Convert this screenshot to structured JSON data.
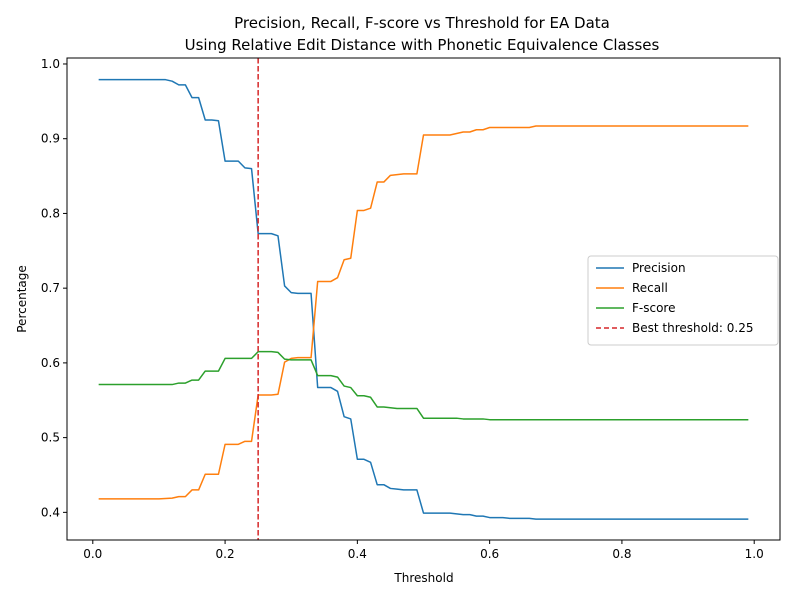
{
  "chart_data": {
    "type": "line",
    "title": "Precision, Recall, F-score vs Threshold for EA Data",
    "subtitle": "Using Relative Edit Distance with Phonetic Equivalence Classes",
    "xlabel": "Threshold",
    "ylabel": "Percentage",
    "xlim": [
      -0.039,
      1.039
    ],
    "ylim": [
      0.363,
      1.008
    ],
    "xticks": [
      0.0,
      0.2,
      0.4,
      0.6,
      0.8,
      1.0
    ],
    "xtick_labels": [
      "0.0",
      "0.2",
      "0.4",
      "0.6",
      "0.8",
      "1.0"
    ],
    "yticks": [
      0.4,
      0.5,
      0.6,
      0.7,
      0.8,
      0.9,
      1.0
    ],
    "ytick_labels": [
      "0.4",
      "0.5",
      "0.6",
      "0.7",
      "0.8",
      "0.9",
      "1.0"
    ],
    "grid": false,
    "legend_position": "center-right",
    "colors": {
      "precision": "#1f77b4",
      "recall": "#ff7f0e",
      "fscore": "#2ca02c",
      "threshold": "#d62728"
    },
    "series": [
      {
        "name": "Precision",
        "color": "#1f77b4",
        "points": [
          [
            0.01,
            0.979
          ],
          [
            0.05,
            0.979
          ],
          [
            0.1,
            0.979
          ],
          [
            0.11,
            0.979
          ],
          [
            0.12,
            0.977
          ],
          [
            0.13,
            0.972
          ],
          [
            0.14,
            0.972
          ],
          [
            0.15,
            0.955
          ],
          [
            0.16,
            0.955
          ],
          [
            0.17,
            0.925
          ],
          [
            0.18,
            0.925
          ],
          [
            0.19,
            0.924
          ],
          [
            0.2,
            0.87
          ],
          [
            0.21,
            0.87
          ],
          [
            0.22,
            0.87
          ],
          [
            0.23,
            0.861
          ],
          [
            0.24,
            0.86
          ],
          [
            0.25,
            0.773
          ],
          [
            0.26,
            0.773
          ],
          [
            0.27,
            0.773
          ],
          [
            0.28,
            0.77
          ],
          [
            0.29,
            0.703
          ],
          [
            0.3,
            0.694
          ],
          [
            0.31,
            0.693
          ],
          [
            0.32,
            0.693
          ],
          [
            0.33,
            0.693
          ],
          [
            0.34,
            0.567
          ],
          [
            0.35,
            0.567
          ],
          [
            0.36,
            0.567
          ],
          [
            0.37,
            0.562
          ],
          [
            0.38,
            0.528
          ],
          [
            0.39,
            0.525
          ],
          [
            0.4,
            0.471
          ],
          [
            0.41,
            0.471
          ],
          [
            0.42,
            0.467
          ],
          [
            0.43,
            0.437
          ],
          [
            0.44,
            0.437
          ],
          [
            0.45,
            0.432
          ],
          [
            0.46,
            0.431
          ],
          [
            0.47,
            0.43
          ],
          [
            0.48,
            0.43
          ],
          [
            0.49,
            0.43
          ],
          [
            0.5,
            0.399
          ],
          [
            0.54,
            0.399
          ],
          [
            0.55,
            0.398
          ],
          [
            0.56,
            0.397
          ],
          [
            0.57,
            0.397
          ],
          [
            0.58,
            0.395
          ],
          [
            0.59,
            0.395
          ],
          [
            0.6,
            0.393
          ],
          [
            0.62,
            0.393
          ],
          [
            0.63,
            0.392
          ],
          [
            0.66,
            0.392
          ],
          [
            0.67,
            0.391
          ],
          [
            0.99,
            0.391
          ]
        ]
      },
      {
        "name": "Recall",
        "color": "#ff7f0e",
        "points": [
          [
            0.01,
            0.418
          ],
          [
            0.05,
            0.418
          ],
          [
            0.1,
            0.418
          ],
          [
            0.12,
            0.419
          ],
          [
            0.13,
            0.421
          ],
          [
            0.14,
            0.421
          ],
          [
            0.15,
            0.43
          ],
          [
            0.16,
            0.43
          ],
          [
            0.17,
            0.451
          ],
          [
            0.18,
            0.451
          ],
          [
            0.19,
            0.451
          ],
          [
            0.2,
            0.491
          ],
          [
            0.21,
            0.491
          ],
          [
            0.22,
            0.491
          ],
          [
            0.23,
            0.495
          ],
          [
            0.24,
            0.495
          ],
          [
            0.25,
            0.557
          ],
          [
            0.26,
            0.557
          ],
          [
            0.27,
            0.557
          ],
          [
            0.28,
            0.558
          ],
          [
            0.29,
            0.601
          ],
          [
            0.3,
            0.606
          ],
          [
            0.31,
            0.607
          ],
          [
            0.32,
            0.607
          ],
          [
            0.33,
            0.607
          ],
          [
            0.34,
            0.709
          ],
          [
            0.35,
            0.709
          ],
          [
            0.36,
            0.709
          ],
          [
            0.37,
            0.714
          ],
          [
            0.38,
            0.738
          ],
          [
            0.39,
            0.74
          ],
          [
            0.4,
            0.804
          ],
          [
            0.41,
            0.804
          ],
          [
            0.42,
            0.807
          ],
          [
            0.43,
            0.842
          ],
          [
            0.44,
            0.842
          ],
          [
            0.45,
            0.851
          ],
          [
            0.46,
            0.852
          ],
          [
            0.47,
            0.853
          ],
          [
            0.48,
            0.853
          ],
          [
            0.49,
            0.853
          ],
          [
            0.5,
            0.905
          ],
          [
            0.54,
            0.905
          ],
          [
            0.55,
            0.907
          ],
          [
            0.56,
            0.909
          ],
          [
            0.57,
            0.909
          ],
          [
            0.58,
            0.912
          ],
          [
            0.59,
            0.912
          ],
          [
            0.6,
            0.915
          ],
          [
            0.62,
            0.915
          ],
          [
            0.63,
            0.915
          ],
          [
            0.66,
            0.915
          ],
          [
            0.67,
            0.917
          ],
          [
            0.99,
            0.917
          ]
        ]
      },
      {
        "name": "F-score",
        "color": "#2ca02c",
        "points": [
          [
            0.01,
            0.571
          ],
          [
            0.05,
            0.571
          ],
          [
            0.1,
            0.571
          ],
          [
            0.12,
            0.571
          ],
          [
            0.13,
            0.573
          ],
          [
            0.14,
            0.573
          ],
          [
            0.15,
            0.577
          ],
          [
            0.16,
            0.577
          ],
          [
            0.17,
            0.589
          ],
          [
            0.18,
            0.589
          ],
          [
            0.19,
            0.589
          ],
          [
            0.2,
            0.606
          ],
          [
            0.21,
            0.606
          ],
          [
            0.22,
            0.606
          ],
          [
            0.23,
            0.606
          ],
          [
            0.24,
            0.606
          ],
          [
            0.25,
            0.615
          ],
          [
            0.26,
            0.615
          ],
          [
            0.27,
            0.615
          ],
          [
            0.28,
            0.614
          ],
          [
            0.29,
            0.605
          ],
          [
            0.3,
            0.604
          ],
          [
            0.31,
            0.604
          ],
          [
            0.32,
            0.604
          ],
          [
            0.33,
            0.604
          ],
          [
            0.34,
            0.583
          ],
          [
            0.35,
            0.583
          ],
          [
            0.36,
            0.583
          ],
          [
            0.37,
            0.581
          ],
          [
            0.38,
            0.569
          ],
          [
            0.39,
            0.567
          ],
          [
            0.4,
            0.556
          ],
          [
            0.41,
            0.556
          ],
          [
            0.42,
            0.554
          ],
          [
            0.43,
            0.541
          ],
          [
            0.44,
            0.541
          ],
          [
            0.45,
            0.54
          ],
          [
            0.46,
            0.539
          ],
          [
            0.47,
            0.539
          ],
          [
            0.48,
            0.539
          ],
          [
            0.49,
            0.539
          ],
          [
            0.5,
            0.526
          ],
          [
            0.54,
            0.526
          ],
          [
            0.55,
            0.526
          ],
          [
            0.56,
            0.525
          ],
          [
            0.57,
            0.525
          ],
          [
            0.58,
            0.525
          ],
          [
            0.59,
            0.525
          ],
          [
            0.6,
            0.524
          ],
          [
            0.62,
            0.524
          ],
          [
            0.63,
            0.524
          ],
          [
            0.66,
            0.524
          ],
          [
            0.67,
            0.524
          ],
          [
            0.99,
            0.524
          ]
        ]
      }
    ],
    "threshold_line": {
      "name": "Best threshold: 0.25",
      "x": 0.25,
      "color": "#d62728",
      "style": "dashed"
    }
  }
}
